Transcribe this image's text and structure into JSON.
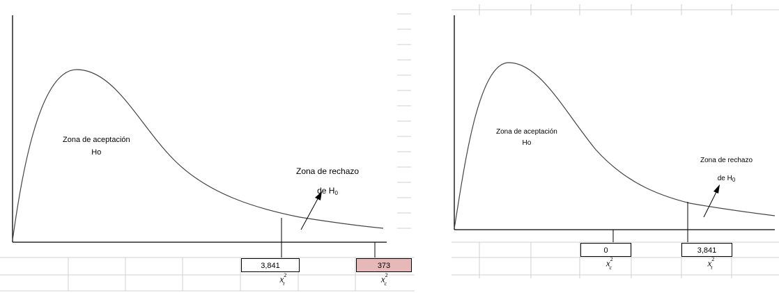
{
  "left_panel": {
    "accept_zone": {
      "line1": "Zona de aceptación",
      "line2": "Ho"
    },
    "reject_zone": {
      "line1": "Zona de rechazo",
      "line2_prefix": "de H",
      "line2_sub": "0"
    },
    "values": [
      {
        "value": "3,841",
        "highlight": false
      },
      {
        "value": "373",
        "highlight": true
      }
    ],
    "labels": [
      {
        "symbol": "x",
        "sup": "2",
        "sub": "t"
      },
      {
        "symbol": "x",
        "sup": "2",
        "sub": "c"
      }
    ],
    "colors": {
      "highlight": "#e6b8b7",
      "curve": "#444444",
      "grid": "#d0d0d0"
    }
  },
  "right_panel": {
    "accept_zone": {
      "line1": "Zona de aceptación",
      "line2": "Ho"
    },
    "reject_zone": {
      "line1": "Zona de rechazo",
      "line2_prefix": "de H",
      "line2_sub": "0"
    },
    "values": [
      {
        "value": "0",
        "highlight": false
      },
      {
        "value": "3,841",
        "highlight": false
      }
    ],
    "labels": [
      {
        "symbol": "x",
        "sup": "2",
        "sub": "c"
      },
      {
        "symbol": "x",
        "sup": "2",
        "sub": "t"
      }
    ]
  }
}
